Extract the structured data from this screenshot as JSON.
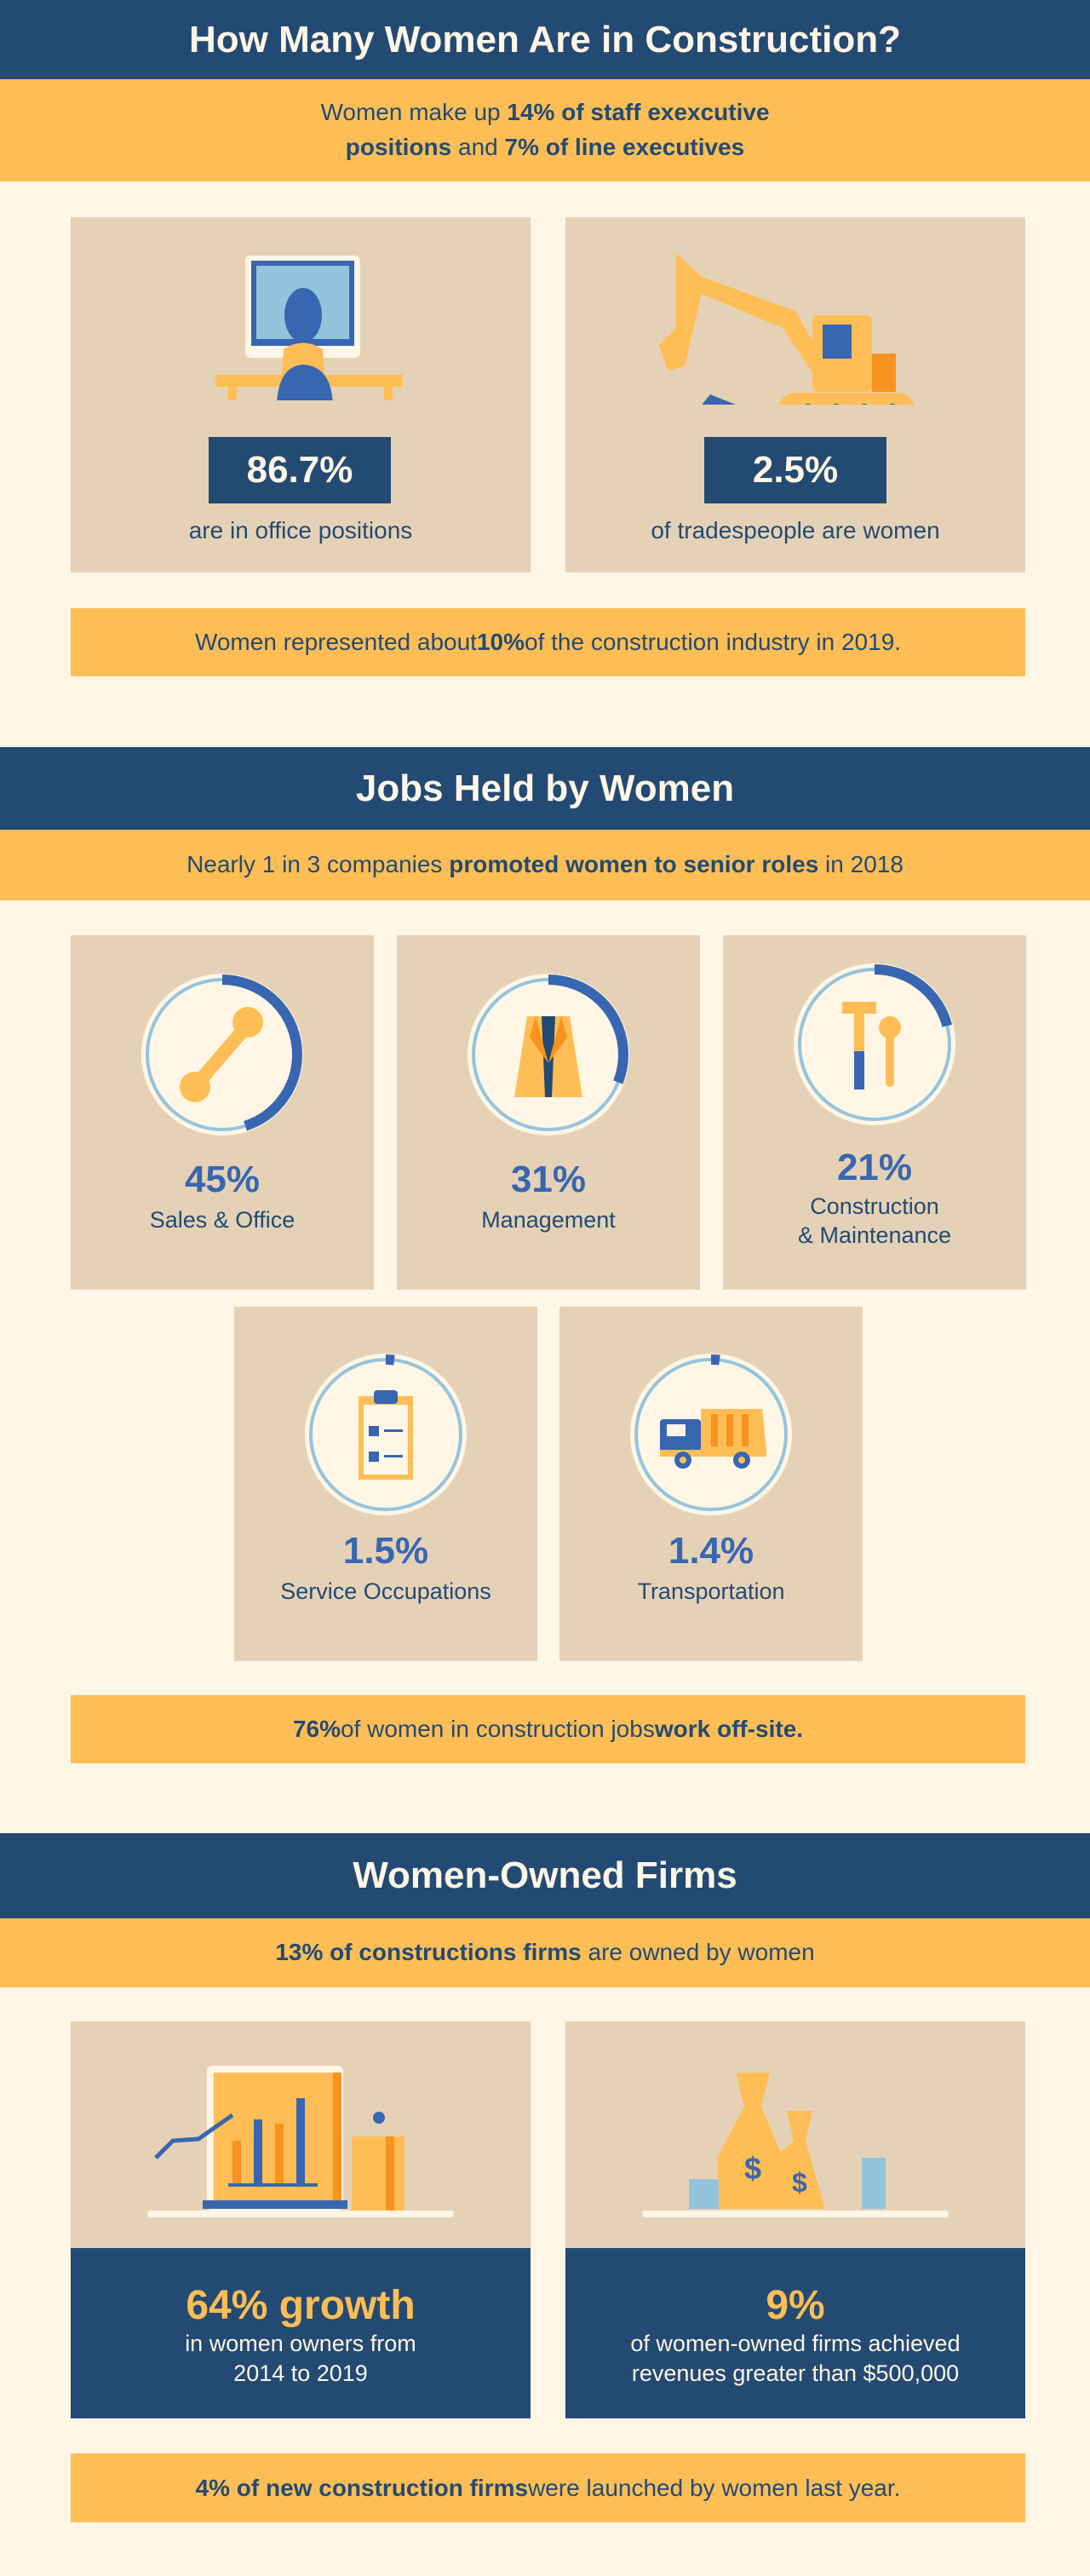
{
  "colors": {
    "navy": "#234a73",
    "yellow": "#ffbe55",
    "cream": "#fff6e6",
    "tan": "#e5d2b6",
    "blue": "#3866b0",
    "light_blue": "#94c4dc",
    "orange": "#f7931e"
  },
  "section1": {
    "title": "How Many Women Are in Construction?",
    "subtitle": {
      "p1": "Women make up ",
      "b1": "14% of staff exexcutive",
      "b2": "positions",
      "p2": " and ",
      "b3": "7% of line executives"
    },
    "cards": [
      {
        "icon": "woman-at-desk-icon",
        "value": "86.7%",
        "caption": "are in office positions"
      },
      {
        "icon": "excavator-icon",
        "value": "2.5%",
        "caption": "of tradespeople are women"
      }
    ],
    "note": {
      "p1": "Women represented about ",
      "b1": "10%",
      "p2": " of the construction industry in 2019."
    }
  },
  "section2": {
    "title": "Jobs Held by Women",
    "subtitle": {
      "p1": "Nearly 1 in 3 companies ",
      "b1": "promoted women to senior roles",
      "p2": " in 2018"
    },
    "jobs": [
      {
        "icon": "telephone-icon",
        "value": "45%",
        "percent": 45,
        "label": "Sales & Office"
      },
      {
        "icon": "blazer-icon",
        "value": "31%",
        "percent": 31,
        "label": "Management"
      },
      {
        "icon": "tools-icon",
        "value": "21%",
        "percent": 21,
        "label": "Construction",
        "label2": "& Maintenance"
      },
      {
        "icon": "clipboard-icon",
        "value": "1.5%",
        "percent": 1.5,
        "label": "Service Occupations"
      },
      {
        "icon": "dump-truck-icon",
        "value": "1.4%",
        "percent": 1.4,
        "label": "Transportation"
      }
    ],
    "note": {
      "b1": "76%",
      "p1": " of women in construction jobs ",
      "b2": "work off-site."
    }
  },
  "section3": {
    "title": "Women-Owned Firms",
    "subtitle": {
      "b1": "13% of constructions firms",
      "p1": " are owned by women"
    },
    "cards": [
      {
        "icon": "presentation-chart-icon",
        "value": "64% growth",
        "line1": "in women owners from",
        "line2": "2014 to 2019"
      },
      {
        "icon": "money-bags-icon",
        "value": "9%",
        "line1": "of women-owned firms achieved",
        "line2": "revenues greater than $500,000"
      }
    ],
    "note": {
      "b1": "4% of new construction firms",
      "p1": " were launched by women last year."
    }
  }
}
